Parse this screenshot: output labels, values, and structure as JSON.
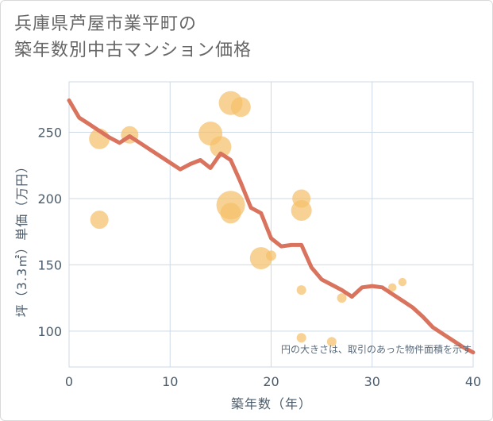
{
  "title": {
    "line1": "兵庫県芦屋市業平町の",
    "line2": "築年数別中古マンション価格"
  },
  "colors": {
    "line": "#d9735e",
    "bubble": "#f5c06b",
    "grid": "#cdd9e6",
    "axis_text": "#4a5b6b"
  },
  "chart_data": {
    "type": "scatter",
    "title": "兵庫県芦屋市業平町の築年数別中古マンション価格",
    "xlabel": "築年数（年）",
    "ylabel": "坪（3.3㎡）単価（万円）",
    "xlim": [
      0,
      40
    ],
    "ylim": [
      73,
      288
    ],
    "xticks": [
      0,
      10,
      20,
      30,
      40
    ],
    "yticks": [
      100,
      150,
      200,
      250
    ],
    "note": "円の大きさは、取引のあった物件面積を示す",
    "bubbles": [
      {
        "x": 3,
        "y": 245,
        "s": 1.0
      },
      {
        "x": 3,
        "y": 184,
        "s": 0.85
      },
      {
        "x": 6,
        "y": 248,
        "s": 0.8
      },
      {
        "x": 14,
        "y": 249,
        "s": 1.2
      },
      {
        "x": 15,
        "y": 239,
        "s": 1.05
      },
      {
        "x": 16,
        "y": 272,
        "s": 1.2
      },
      {
        "x": 17,
        "y": 269,
        "s": 0.95
      },
      {
        "x": 16,
        "y": 195,
        "s": 1.5
      },
      {
        "x": 16,
        "y": 189,
        "s": 1.0
      },
      {
        "x": 19,
        "y": 155,
        "s": 1.1
      },
      {
        "x": 20,
        "y": 157,
        "s": 0.35
      },
      {
        "x": 23,
        "y": 200,
        "s": 0.85
      },
      {
        "x": 23,
        "y": 191,
        "s": 1.0
      },
      {
        "x": 23,
        "y": 131,
        "s": 0.3
      },
      {
        "x": 23,
        "y": 95,
        "s": 0.3
      },
      {
        "x": 26,
        "y": 92,
        "s": 0.3
      },
      {
        "x": 27,
        "y": 125,
        "s": 0.3
      },
      {
        "x": 32,
        "y": 133,
        "s": 0.22
      },
      {
        "x": 33,
        "y": 137,
        "s": 0.22
      }
    ],
    "series": [
      {
        "name": "average",
        "x": [
          0,
          1,
          2,
          3,
          4,
          5,
          6,
          7,
          8,
          9,
          10,
          11,
          12,
          13,
          14,
          15,
          16,
          17,
          18,
          19,
          20,
          21,
          22,
          23,
          24,
          25,
          26,
          27,
          28,
          29,
          30,
          31,
          32,
          33,
          34,
          35,
          36,
          37,
          38,
          39,
          40
        ],
        "y": [
          274,
          261,
          256,
          251,
          246,
          242,
          247,
          242,
          237,
          232,
          227,
          222,
          226,
          229,
          223,
          234,
          229,
          212,
          193,
          189,
          170,
          164,
          165,
          165,
          148,
          139,
          135,
          131,
          126,
          133,
          134,
          133,
          128,
          123,
          118,
          111,
          103,
          98,
          93,
          88,
          84
        ]
      }
    ]
  }
}
